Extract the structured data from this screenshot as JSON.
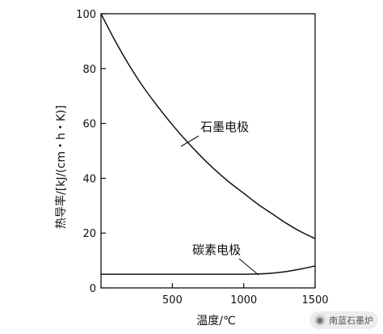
{
  "chart_data": {
    "type": "line",
    "title": "",
    "xlabel": "温度/℃",
    "ylabel": "热导率/[kJ/(cm・h・K)]",
    "xlim": [
      0,
      1500
    ],
    "ylim": [
      0,
      100
    ],
    "xticks": [
      500,
      1000,
      1500
    ],
    "yticks": [
      0,
      20,
      40,
      60,
      80,
      100
    ],
    "grid": false,
    "series": [
      {
        "name": "石墨电极",
        "x": [
          0,
          100,
          200,
          300,
          400,
          500,
          600,
          700,
          800,
          900,
          1000,
          1100,
          1200,
          1300,
          1400,
          1500
        ],
        "y": [
          100,
          90,
          81,
          73,
          66,
          59.5,
          53.5,
          48,
          43,
          38.5,
          34.5,
          30.5,
          27,
          23.5,
          20.5,
          18
        ],
        "color": "#111111"
      },
      {
        "name": "碳素电极",
        "x": [
          0,
          200,
          400,
          600,
          800,
          1000,
          1100,
          1200,
          1300,
          1400,
          1500
        ],
        "y": [
          5,
          5,
          5,
          5,
          5,
          5,
          5.1,
          5.4,
          6.0,
          6.9,
          8.0
        ],
        "color": "#111111"
      }
    ]
  },
  "watermark": {
    "icon": "circle-logo-icon",
    "text": "南蓝石墨炉"
  }
}
